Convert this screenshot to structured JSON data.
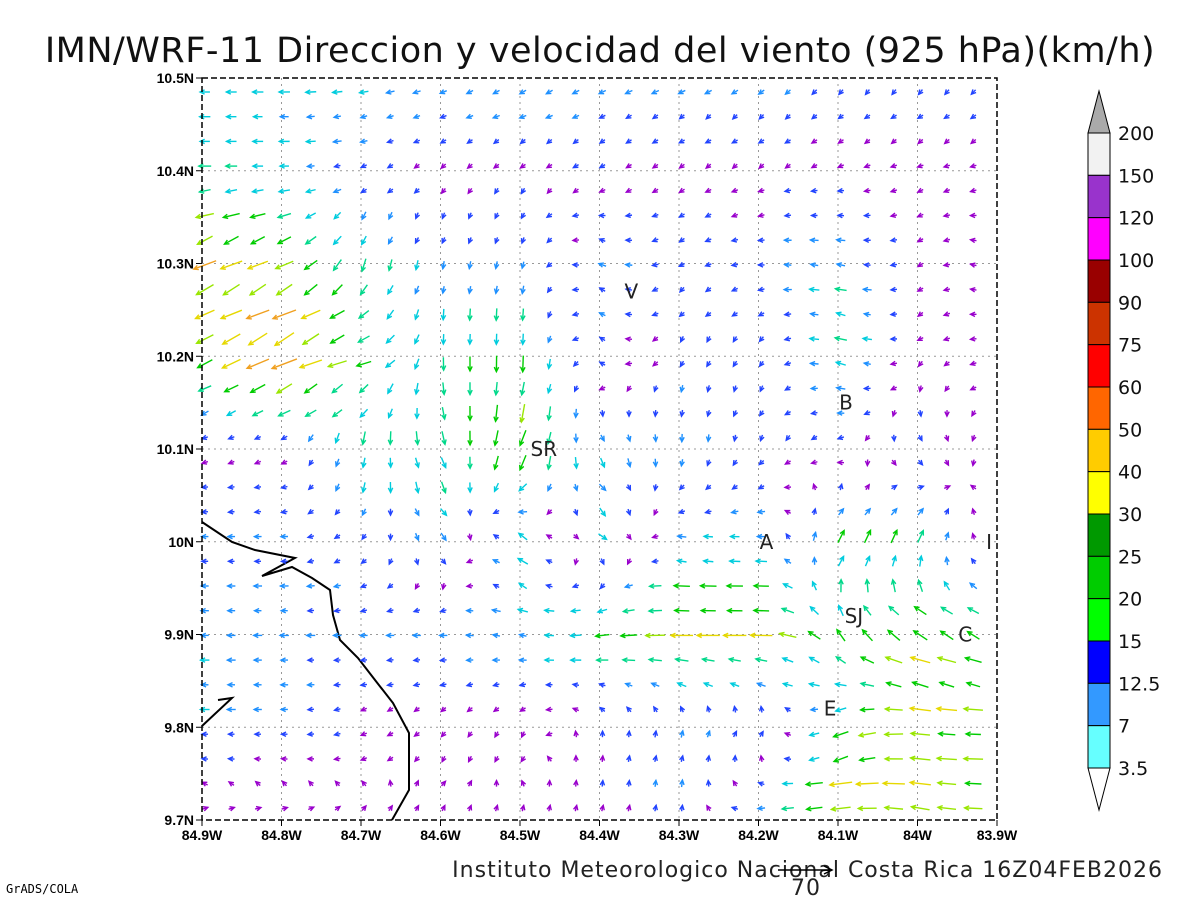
{
  "chart_data": {
    "type": "vector",
    "title": "IMN/WRF-11 Direccion y velocidad del viento (925 hPa)(km/h)",
    "footer": "Instituto Meteorologico Nacional Costa Rica 16Z04FEB2026",
    "credit": "GrADS/COLA",
    "reference_vector": {
      "value": 70,
      "label": "70"
    },
    "xlim": [
      -84.9,
      -83.9
    ],
    "ylim": [
      9.7,
      10.5
    ],
    "x_ticks": [
      "84.9W",
      "84.8W",
      "84.7W",
      "84.6W",
      "84.5W",
      "84.4W",
      "84.3W",
      "84.2W",
      "84.1W",
      "84W",
      "83.9W"
    ],
    "y_ticks": [
      "10.5N",
      "10.4N",
      "10.3N",
      "10.2N",
      "10.1N",
      "10N",
      "9.9N",
      "9.8N",
      "9.7N"
    ],
    "grid": true,
    "colorbar": {
      "labels": [
        "200",
        "150",
        "120",
        "100",
        "90",
        "75",
        "60",
        "50",
        "40",
        "30",
        "25",
        "20",
        "15",
        "12.5",
        "7",
        "3.5"
      ],
      "colors": [
        "#f2f2f2",
        "#9933cc",
        "#ff00ff",
        "#990000",
        "#cc3300",
        "#ff0000",
        "#ff6600",
        "#ffcc00",
        "#ffff00",
        "#009900",
        "#00cc00",
        "#00ff00",
        "#0000ff",
        "#3399ff",
        "#66ffff"
      ],
      "over_color": "#aaaaaa",
      "under_color": "#ffffff"
    },
    "stations": [
      {
        "label": "V",
        "lon": -84.36,
        "lat": 10.27
      },
      {
        "label": "SR",
        "lon": -84.47,
        "lat": 10.1
      },
      {
        "label": "B",
        "lon": -84.09,
        "lat": 10.15
      },
      {
        "label": "A",
        "lon": -84.19,
        "lat": 10.0
      },
      {
        "label": "I",
        "lon": -83.91,
        "lat": 10.0
      },
      {
        "label": "SJ",
        "lon": -84.08,
        "lat": 9.92
      },
      {
        "label": "C",
        "lon": -83.94,
        "lat": 9.9
      },
      {
        "label": "E",
        "lon": -84.11,
        "lat": 9.82
      }
    ],
    "wind_grid_note": "coarse u,v (km/h) at lat rows 10.5..9.7 and lon cols 84.9W..83.9W",
    "wind_u": [
      [
        -12,
        -12,
        -11,
        -10,
        -10,
        -9,
        -8,
        -7,
        -6,
        -6,
        -6
      ],
      [
        -14,
        -12,
        -6,
        -3,
        -3,
        -4,
        -3,
        -3,
        -3,
        -3,
        -3
      ],
      [
        -25,
        -20,
        -5,
        -2,
        -2,
        -8,
        -6,
        -8,
        -12,
        -3,
        -3
      ],
      [
        -20,
        -30,
        -18,
        0,
        0,
        -6,
        -3,
        -3,
        -14,
        -3,
        -3
      ],
      [
        -3,
        -4,
        -2,
        5,
        -8,
        5,
        0,
        -2,
        -5,
        4,
        -2
      ],
      [
        -8,
        -8,
        -5,
        8,
        -12,
        10,
        -10,
        -12,
        10,
        8,
        -5
      ],
      [
        -10,
        -10,
        -8,
        -10,
        -10,
        -18,
        -25,
        -25,
        -10,
        -20,
        -15
      ],
      [
        -10,
        -8,
        -4,
        -2,
        -2,
        0,
        2,
        5,
        -15,
        -25,
        -20
      ],
      [
        4,
        4,
        2,
        2,
        1,
        1,
        1,
        -10,
        -30,
        -25,
        -20
      ]
    ],
    "wind_v": [
      [
        0,
        0,
        -2,
        -3,
        -4,
        -4,
        -5,
        -6,
        -6,
        -6,
        -6
      ],
      [
        0,
        0,
        -2,
        -3,
        -3,
        -3,
        -2,
        -2,
        -1,
        -1,
        -1
      ],
      [
        -12,
        -10,
        -15,
        -8,
        -8,
        4,
        -4,
        0,
        2,
        -2,
        2
      ],
      [
        -10,
        -15,
        -5,
        -15,
        -18,
        4,
        -6,
        -6,
        4,
        -2,
        0
      ],
      [
        -1,
        -2,
        -15,
        -15,
        -22,
        -10,
        -10,
        -5,
        -2,
        -8,
        0
      ],
      [
        0,
        0,
        -5,
        -8,
        10,
        -8,
        2,
        0,
        14,
        16,
        0
      ],
      [
        0,
        0,
        0,
        0,
        2,
        -2,
        0,
        0,
        14,
        10,
        8
      ],
      [
        0,
        0,
        -2,
        -3,
        -4,
        5,
        8,
        8,
        -8,
        2,
        0
      ],
      [
        1,
        1,
        2,
        3,
        3,
        4,
        8,
        -2,
        -2,
        4,
        0
      ]
    ]
  }
}
